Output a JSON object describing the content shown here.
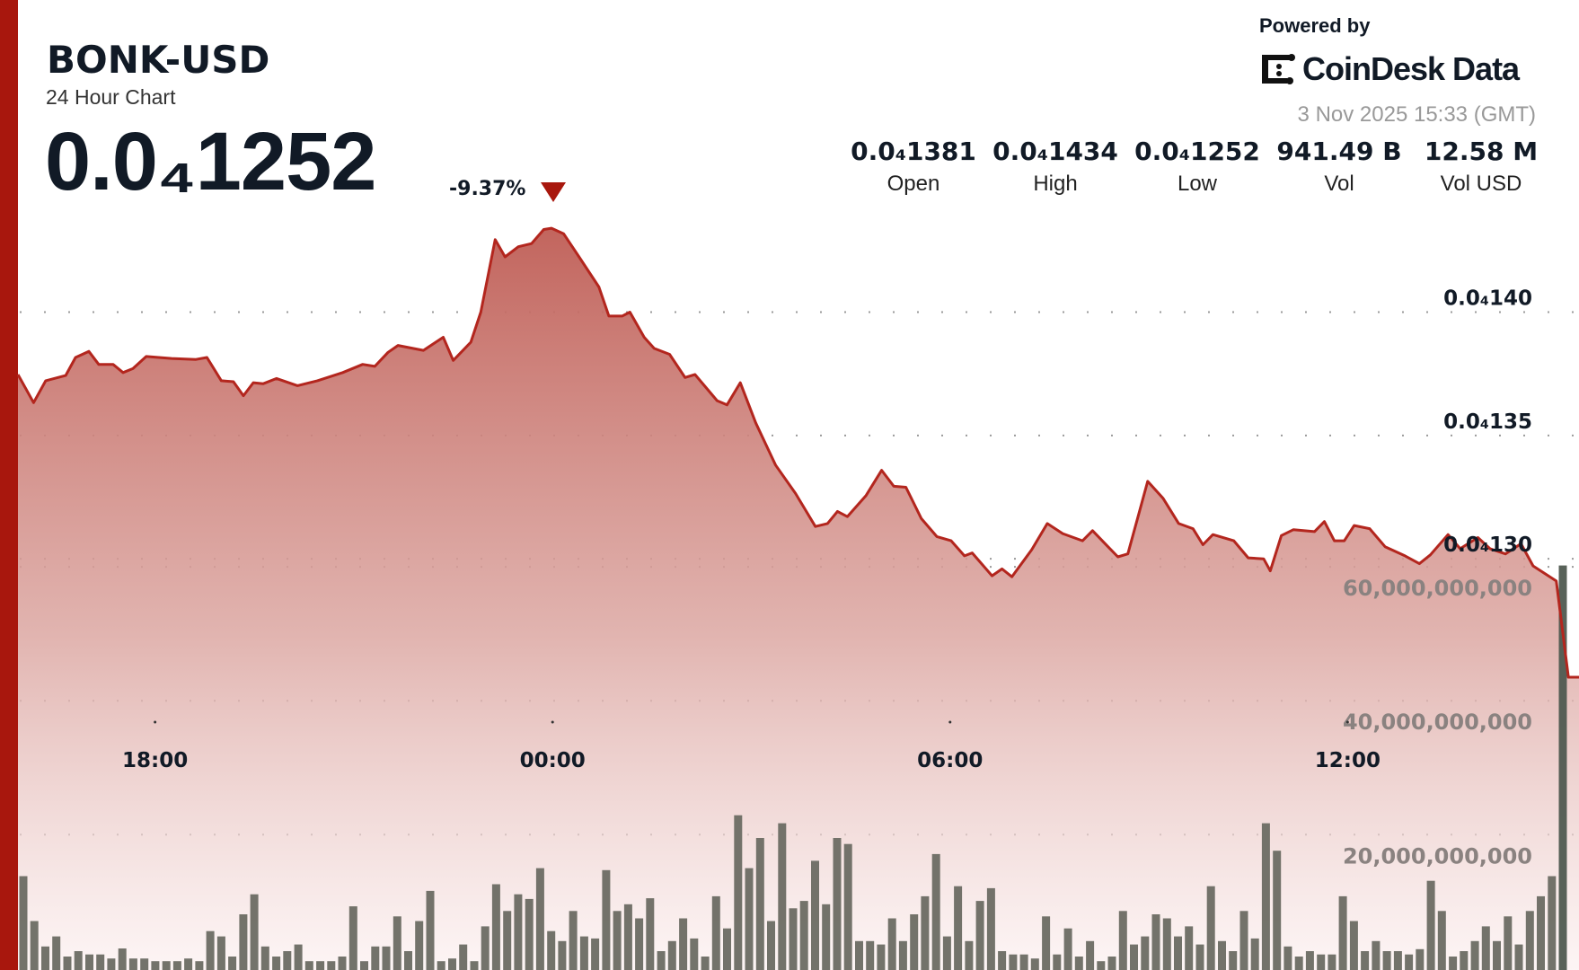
{
  "header": {
    "symbol": "BONK-USD",
    "subtitle": "24 Hour Chart",
    "price": "0.0₄1252",
    "change_pct": "-9.37%",
    "change_direction": "down",
    "powered_by": "Powered by",
    "brand": "CoinDesk Data",
    "timestamp": "3 Nov 2025 15:33 (GMT)"
  },
  "stats": [
    {
      "value": "0.0₄1381",
      "label": "Open"
    },
    {
      "value": "0.0₄1434",
      "label": "High"
    },
    {
      "value": "0.0₄1252",
      "label": "Low"
    },
    {
      "value": "941.49 B",
      "label": "Vol"
    },
    {
      "value": "12.58 M",
      "label": "Vol USD"
    }
  ],
  "colors": {
    "accent": "#a8170d",
    "line": "#b3261e",
    "fill_top": "#c0625a",
    "volume_bar": "#6b6b63",
    "last_volume_bar": "#4f5a50"
  },
  "chart_data": {
    "type": "area",
    "price_axis": {
      "ticks": [
        1.4e-05,
        1.35e-05,
        1.3e-05
      ],
      "tick_labels": [
        "0.0₄140",
        "0.0₄135",
        "0.0₄130"
      ]
    },
    "volume_axis": {
      "ticks": [
        60000000000,
        40000000000,
        20000000000
      ],
      "tick_labels": [
        "60,000,000,000",
        "40,000,000,000",
        "20,000,000,000"
      ]
    },
    "x_axis": {
      "ticks": [
        "18:00",
        "00:00",
        "06:00",
        "12:00"
      ]
    },
    "grid": "dotted",
    "price": [
      [
        "15:56",
        1.3747e-05
      ],
      [
        "16:10",
        1.3633e-05
      ],
      [
        "16:21",
        1.3722e-05
      ],
      [
        "16:39",
        1.3743e-05
      ],
      [
        "16:48",
        1.3816e-05
      ],
      [
        "17:00",
        1.3841e-05
      ],
      [
        "17:09",
        1.3788e-05
      ],
      [
        "17:22",
        1.3788e-05
      ],
      [
        "17:31",
        1.3755e-05
      ],
      [
        "17:40",
        1.3771e-05
      ],
      [
        "17:52",
        1.382e-05
      ],
      [
        "18:15",
        1.3812e-05
      ],
      [
        "18:37",
        1.3808e-05
      ],
      [
        "18:47",
        1.3816e-05
      ],
      [
        "19:00",
        1.3722e-05
      ],
      [
        "19:11",
        1.3718e-05
      ],
      [
        "19:20",
        1.3661e-05
      ],
      [
        "19:29",
        1.3714e-05
      ],
      [
        "19:38",
        1.371e-05
      ],
      [
        "19:50",
        1.3731e-05
      ],
      [
        "20:09",
        1.3702e-05
      ],
      [
        "20:27",
        1.3722e-05
      ],
      [
        "20:50",
        1.3755e-05
      ],
      [
        "21:08",
        1.3788e-05
      ],
      [
        "21:19",
        1.378e-05
      ],
      [
        "21:31",
        1.3837e-05
      ],
      [
        "21:40",
        1.3865e-05
      ],
      [
        "22:03",
        1.3845e-05
      ],
      [
        "22:21",
        1.3898e-05
      ],
      [
        "22:30",
        1.3804e-05
      ],
      [
        "22:46",
        1.3878e-05
      ],
      [
        "22:55",
        1.4e-05
      ],
      [
        "23:08",
        1.4294e-05
      ],
      [
        "23:17",
        1.4224e-05
      ],
      [
        "23:29",
        1.4265e-05
      ],
      [
        "23:41",
        1.4278e-05
      ],
      [
        "23:52",
        1.4335e-05
      ],
      [
        "23:59",
        1.434e-05
      ],
      [
        "00:10",
        1.4318e-05
      ],
      [
        "00:24",
        1.4224e-05
      ],
      [
        "00:42",
        1.4102e-05
      ],
      [
        "00:51",
        1.3984e-05
      ],
      [
        "01:03",
        1.3984e-05
      ],
      [
        "01:10",
        1.4e-05
      ],
      [
        "01:23",
        1.3898e-05
      ],
      [
        "01:32",
        1.3853e-05
      ],
      [
        "01:46",
        1.3829e-05
      ],
      [
        "02:00",
        1.3735e-05
      ],
      [
        "02:09",
        1.3747e-05
      ],
      [
        "02:29",
        1.3641e-05
      ],
      [
        "02:38",
        1.3624e-05
      ],
      [
        "02:50",
        1.3714e-05
      ],
      [
        "03:04",
        1.3551e-05
      ],
      [
        "03:22",
        1.338e-05
      ],
      [
        "03:40",
        1.3265e-05
      ],
      [
        "03:58",
        1.3131e-05
      ],
      [
        "04:09",
        1.3143e-05
      ],
      [
        "04:18",
        1.3192e-05
      ],
      [
        "04:27",
        1.3171e-05
      ],
      [
        "04:44",
        1.3257e-05
      ],
      [
        "04:58",
        1.3359e-05
      ],
      [
        "05:09",
        1.3294e-05
      ],
      [
        "05:20",
        1.329e-05
      ],
      [
        "05:34",
        1.3163e-05
      ],
      [
        "05:48",
        1.309e-05
      ],
      [
        "06:01",
        1.3073e-05
      ],
      [
        "06:13",
        1.3012e-05
      ],
      [
        "06:20",
        1.3024e-05
      ],
      [
        "06:38",
        1.2931e-05
      ],
      [
        "06:47",
        1.2959e-05
      ],
      [
        "06:56",
        1.2927e-05
      ],
      [
        "07:14",
        1.3037e-05
      ],
      [
        "07:28",
        1.3143e-05
      ],
      [
        "07:42",
        1.3102e-05
      ],
      [
        "08:00",
        1.3073e-05
      ],
      [
        "08:09",
        1.3114e-05
      ],
      [
        "08:23",
        1.3049e-05
      ],
      [
        "08:32",
        1.3008e-05
      ],
      [
        "08:41",
        1.302e-05
      ],
      [
        "08:59",
        1.3314e-05
      ],
      [
        "09:13",
        1.3245e-05
      ],
      [
        "09:27",
        1.3143e-05
      ],
      [
        "09:40",
        1.3122e-05
      ],
      [
        "09:49",
        1.3057e-05
      ],
      [
        "09:58",
        1.3098e-05
      ],
      [
        "10:17",
        1.3073e-05
      ],
      [
        "10:30",
        1.3004e-05
      ],
      [
        "10:44",
        1.3e-05
      ],
      [
        "10:50",
        1.2951e-05
      ],
      [
        "11:00",
        1.3094e-05
      ],
      [
        "11:11",
        1.3118e-05
      ],
      [
        "11:30",
        1.311e-05
      ],
      [
        "11:39",
        1.3151e-05
      ],
      [
        "11:48",
        1.3073e-05
      ],
      [
        "11:57",
        1.3073e-05
      ],
      [
        "12:06",
        1.3135e-05
      ],
      [
        "12:20",
        1.3122e-05
      ],
      [
        "12:34",
        1.3049e-05
      ],
      [
        "12:52",
        1.3012e-05
      ],
      [
        "13:05",
        1.298e-05
      ],
      [
        "13:15",
        1.3016e-05
      ],
      [
        "13:31",
        1.3098e-05
      ],
      [
        "13:42",
        1.3041e-05
      ],
      [
        "13:58",
        1.3086e-05
      ],
      [
        "14:09",
        1.3041e-05
      ],
      [
        "14:23",
        1.302e-05
      ],
      [
        "14:37",
        1.3061e-05
      ],
      [
        "14:48",
        1.2971e-05
      ],
      [
        "15:09",
        1.291e-05
      ],
      [
        "15:20",
        1.252e-05
      ],
      [
        "15:30",
        1.252e-05
      ]
    ],
    "volume_billions": [
      13.8,
      7.1,
      3.3,
      4.8,
      1.8,
      2.6,
      2.1,
      2.1,
      1.5,
      3.0,
      1.5,
      1.5,
      1.1,
      1.1,
      1.1,
      1.5,
      1.1,
      5.6,
      4.8,
      1.8,
      8.1,
      11.1,
      3.3,
      1.8,
      2.6,
      3.6,
      1.1,
      1.1,
      1.1,
      1.8,
      9.3,
      1.1,
      3.3,
      3.3,
      7.8,
      2.6,
      7.1,
      11.6,
      1.1,
      1.5,
      3.6,
      1.1,
      6.3,
      12.6,
      8.6,
      11.1,
      10.4,
      15.0,
      5.6,
      4.1,
      8.6,
      4.8,
      4.5,
      14.7,
      8.6,
      9.6,
      7.5,
      10.5,
      2.6,
      4.1,
      7.5,
      4.5,
      1.8,
      10.8,
      6.0,
      22.9,
      15.0,
      19.5,
      7.1,
      21.7,
      9.0,
      10.1,
      16.1,
      9.6,
      19.5,
      18.6,
      4.1,
      4.1,
      3.6,
      7.5,
      4.1,
      8.1,
      10.8,
      17.1,
      4.8,
      12.3,
      4.1,
      10.1,
      12.0,
      2.6,
      2.1,
      2.1,
      1.5,
      7.8,
      2.1,
      6.0,
      1.8,
      4.1,
      1.1,
      1.8,
      8.6,
      3.6,
      4.8,
      8.1,
      7.5,
      4.8,
      6.3,
      3.6,
      12.3,
      4.1,
      2.6,
      8.6,
      4.5,
      21.7,
      17.6,
      3.3,
      1.8,
      2.6,
      2.1,
      2.1,
      10.8,
      7.1,
      2.6,
      4.1,
      2.6,
      2.6,
      2.1,
      2.9,
      13.1,
      8.6,
      1.8,
      2.6,
      4.1,
      6.3,
      4.1,
      7.8,
      3.6,
      8.6,
      10.8,
      13.8,
      60.2
    ]
  }
}
